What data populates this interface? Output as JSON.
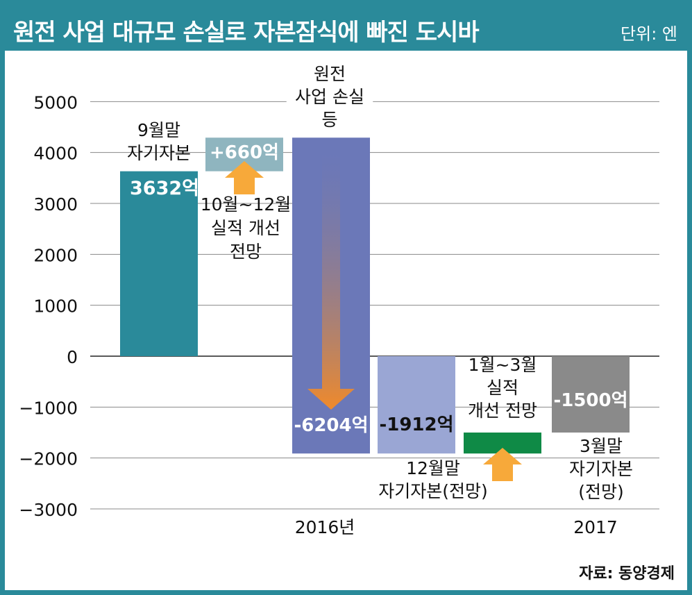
{
  "header": {
    "title": "원전 사업 대규모 손실로 자본잠식에 빠진 도시바",
    "unit": "단위: 엔"
  },
  "source": "자료: 동양경제",
  "colors": {
    "frame": "#2a8a9a",
    "capital_sep": "#2a8a9a",
    "improve_q4": "#8fb5bf",
    "loss": "#6b78b8",
    "capital_dec": "#9aa6d4",
    "improve_q1": "#0f8a46",
    "capital_mar": "#8a8a8a",
    "arrow_up": "#f7a93a",
    "arrow_down": "#f08a2a"
  },
  "chart_data": {
    "type": "bar",
    "subtype": "waterfall",
    "ylim": [
      -3000,
      5000
    ],
    "yticks": [
      "5000",
      "4000",
      "3000",
      "2000",
      "1000",
      "0",
      "-1000",
      "-2000",
      "-3000"
    ],
    "grid": true,
    "bars": [
      {
        "label_lines": [
          "9월말",
          "자기자본"
        ],
        "value_label": "3632억",
        "start": 0,
        "end": 3632,
        "color": "#2a8a9a"
      },
      {
        "label_lines": [
          "10월~12월",
          "실적 개선",
          "전망"
        ],
        "value_label": "+660억",
        "start": 3632,
        "end": 4292,
        "color": "#8fb5bf"
      },
      {
        "label_lines": [
          "원전",
          "사업 손실",
          "등"
        ],
        "value_label": "-6204억",
        "start": 4292,
        "end": -1912,
        "color": "#6b78b8"
      },
      {
        "label_lines": [
          "12월말",
          "자기자본(전망)"
        ],
        "value_label": "-1912억",
        "start": 0,
        "end": -1912,
        "color": "#9aa6d4"
      },
      {
        "label_lines": [
          "1월~3월",
          "실적",
          "개선 전망"
        ],
        "value_label": "",
        "start": -1912,
        "end": -1500,
        "color": "#0f8a46"
      },
      {
        "label_lines": [
          "3월말",
          "자기자본",
          "(전망)"
        ],
        "value_label": "-1500억",
        "start": 0,
        "end": -1500,
        "color": "#8a8a8a"
      }
    ],
    "period_labels": [
      "2016년",
      "2017"
    ]
  }
}
